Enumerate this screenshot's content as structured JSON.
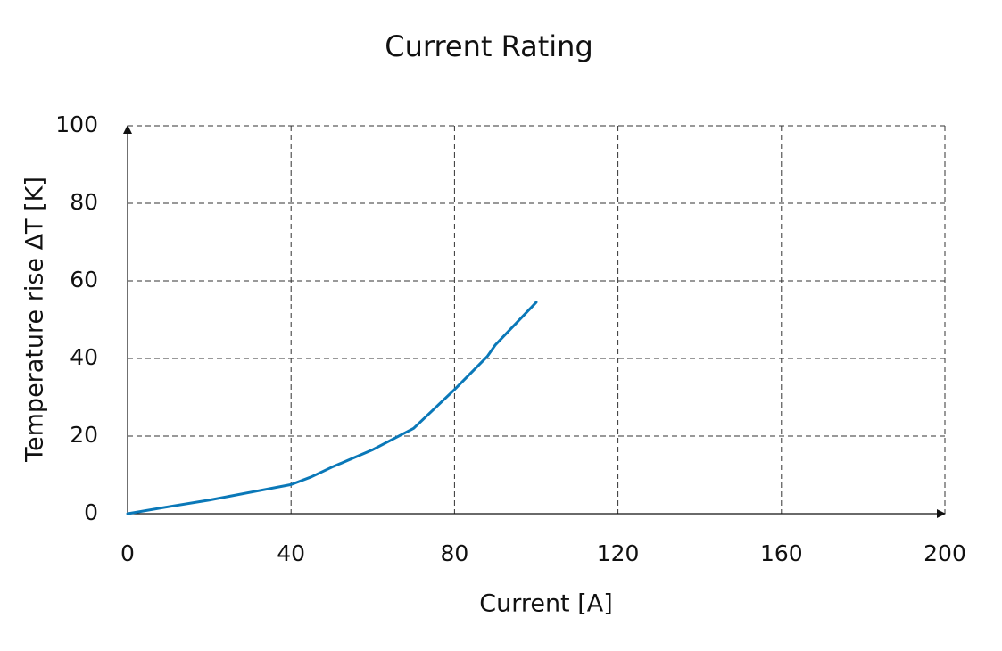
{
  "chart_data": {
    "type": "line",
    "title": "Current Rating",
    "x_label": "Current [A]",
    "y_label": "Temperature rise ΔT [K]",
    "x": [
      0,
      10,
      20,
      30,
      40,
      45,
      50,
      60,
      70,
      80,
      88,
      90,
      100
    ],
    "values": [
      0,
      1.8,
      3.5,
      5.5,
      7.5,
      9.5,
      12,
      16.5,
      22,
      32,
      40.5,
      43.5,
      54.5
    ],
    "color": "#0a78b8",
    "xlim": [
      0,
      200
    ],
    "xticks": [
      0,
      40,
      80,
      120,
      160,
      200
    ],
    "ylim": [
      0,
      100
    ],
    "yticks": [
      0,
      20,
      40,
      60,
      80,
      100
    ],
    "grid": true
  }
}
